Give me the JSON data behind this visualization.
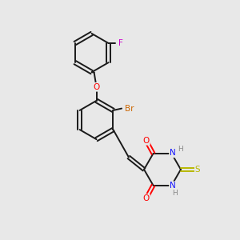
{
  "background_color": "#e8e8e8",
  "bond_color": "#1a1a1a",
  "atom_colors": {
    "O": "#ff0000",
    "N": "#1414ff",
    "S": "#b8b800",
    "Br": "#cc6600",
    "F": "#cc00cc",
    "H": "#888888",
    "C": "#1a1a1a"
  },
  "figsize": [
    3.0,
    3.0
  ],
  "dpi": 100
}
